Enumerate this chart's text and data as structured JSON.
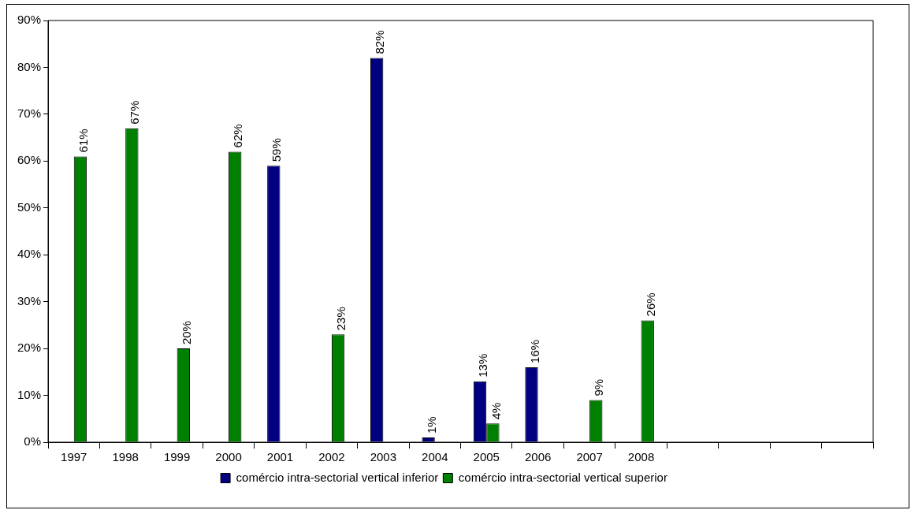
{
  "chart_data": {
    "type": "bar",
    "categories": [
      "1997",
      "1998",
      "1999",
      "2000",
      "2001",
      "2002",
      "2003",
      "2004",
      "2005",
      "2006",
      "2007",
      "2008",
      null,
      null,
      null,
      null
    ],
    "series": [
      {
        "name": "comércio intra-sectorial vertical inferior",
        "color": "#000080",
        "values": [
          null,
          null,
          null,
          null,
          59,
          null,
          82,
          1,
          13,
          16,
          null,
          null,
          null,
          null,
          null,
          null
        ],
        "value_labels": [
          null,
          null,
          null,
          null,
          "59%",
          null,
          "82%",
          "1%",
          "13%",
          "16%",
          null,
          null,
          null,
          null,
          null,
          null
        ]
      },
      {
        "name": "comércio intra-sectorial vertical superior",
        "color": "#008000",
        "values": [
          61,
          67,
          20,
          62,
          null,
          23,
          null,
          null,
          4,
          null,
          9,
          26,
          null,
          null,
          null,
          null
        ],
        "value_labels": [
          "61%",
          "67%",
          "20%",
          "62%",
          null,
          "23%",
          null,
          null,
          "4%",
          null,
          "9%",
          "26%",
          null,
          null,
          null,
          null
        ]
      }
    ],
    "ylim": [
      0,
      90
    ],
    "yticks": [
      {
        "value": 0,
        "label": "0%"
      },
      {
        "value": 10,
        "label": "10%"
      },
      {
        "value": 20,
        "label": "20%"
      },
      {
        "value": 30,
        "label": "30%"
      },
      {
        "value": 40,
        "label": "40%"
      },
      {
        "value": 50,
        "label": "50%"
      },
      {
        "value": 60,
        "label": "60%"
      },
      {
        "value": 70,
        "label": "70%"
      },
      {
        "value": 80,
        "label": "80%"
      },
      {
        "value": 90,
        "label": "90%"
      }
    ],
    "grid": false,
    "legend": "bottom"
  }
}
